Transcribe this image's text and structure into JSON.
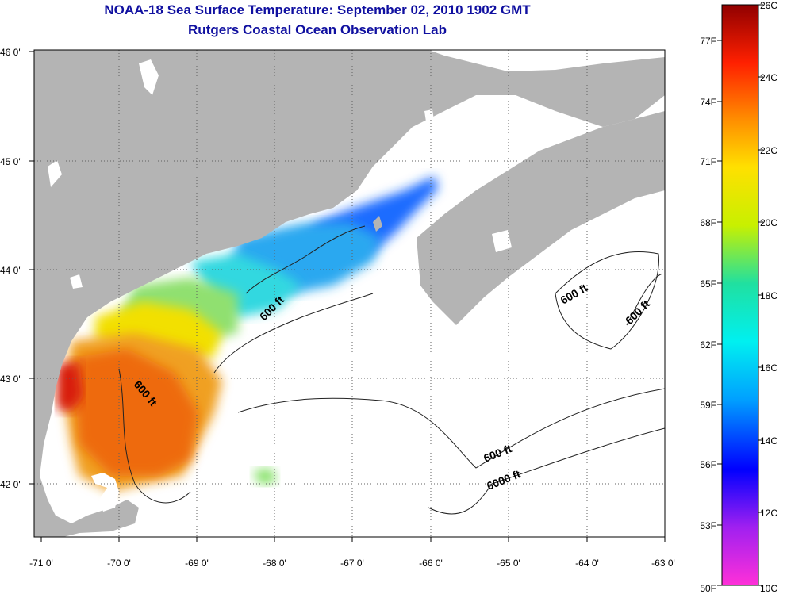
{
  "header": {
    "title": "NOAA-18 Sea Surface Temperature:  September 02, 2010 1902 GMT",
    "subtitle": "Rutgers Coastal Ocean Observation Lab"
  },
  "map": {
    "lon_ticks": [
      "-71 0'",
      "-70 0'",
      "-69 0'",
      "-68 0'",
      "-67 0'",
      "-66 0'",
      "-65 0'",
      "-64 0'",
      "-63 0'"
    ],
    "lat_ticks": [
      "46 0'",
      "45 0'",
      "44 0'",
      "43 0'",
      "42 0'"
    ],
    "contour_labels": [
      "600 ft",
      "600 ft",
      "600 ft",
      "600 ft",
      "600 ft",
      "6000 ft"
    ],
    "colors": {
      "land": "#b4b4b4",
      "water": "#ffffff",
      "grid": "#606060"
    }
  },
  "colorbar": {
    "celsius_labels": [
      "26C",
      "24C",
      "22C",
      "20C",
      "18C",
      "16C",
      "14C",
      "12C",
      "10C"
    ],
    "fahrenheit_labels": [
      "77F",
      "74F",
      "71F",
      "68F",
      "65F",
      "62F",
      "59F",
      "56F",
      "53F",
      "50F"
    ]
  }
}
